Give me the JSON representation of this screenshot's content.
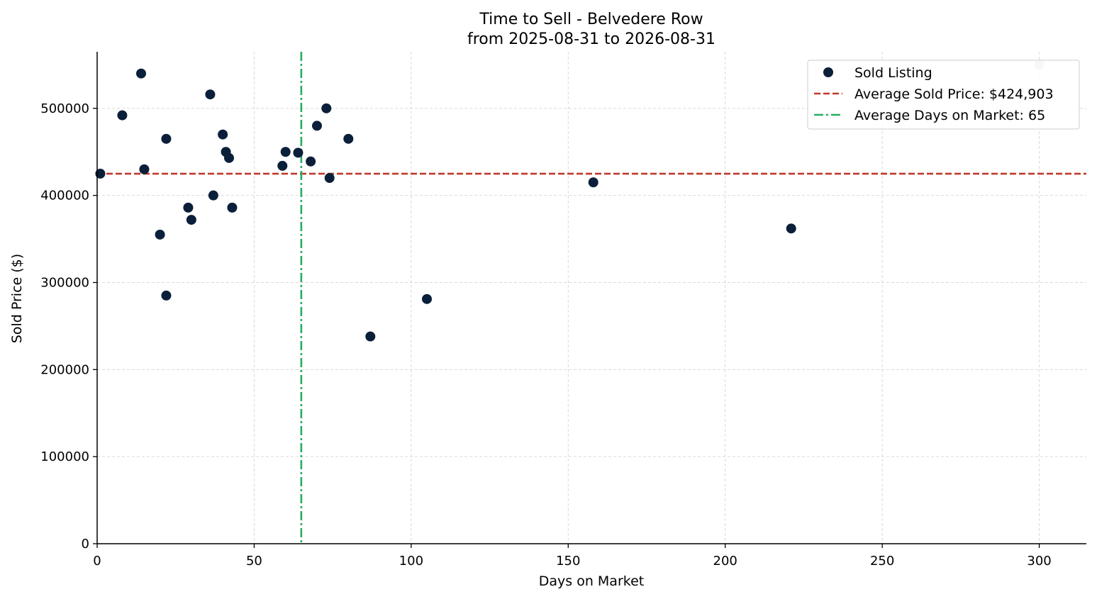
{
  "chart_data": {
    "type": "scatter",
    "title": "Time to Sell - Belvedere Row",
    "subtitle": "from 2025-08-31 to 2026-08-31",
    "xlabel": "Days on Market",
    "ylabel": "Sold Price ($)",
    "xlim": [
      0,
      315
    ],
    "ylim": [
      0,
      565000
    ],
    "xticks": [
      0,
      50,
      100,
      150,
      200,
      250,
      300
    ],
    "yticks": [
      0,
      100000,
      200000,
      300000,
      400000,
      500000
    ],
    "grid": true,
    "legend_position": "top-right",
    "colors": {
      "points": "#0b1f3a",
      "faded_point": "#c8ced6",
      "avg_price_line": "#c0392b",
      "avg_days_line": "#27ae60"
    },
    "series": [
      {
        "name": "Sold Listing",
        "points": [
          {
            "x": 1,
            "y": 425000
          },
          {
            "x": 8,
            "y": 492000
          },
          {
            "x": 14,
            "y": 540000
          },
          {
            "x": 15,
            "y": 430000
          },
          {
            "x": 20,
            "y": 355000
          },
          {
            "x": 22,
            "y": 465000
          },
          {
            "x": 22,
            "y": 285000
          },
          {
            "x": 29,
            "y": 386000
          },
          {
            "x": 30,
            "y": 372000
          },
          {
            "x": 36,
            "y": 516000
          },
          {
            "x": 37,
            "y": 400000
          },
          {
            "x": 40,
            "y": 470000
          },
          {
            "x": 41,
            "y": 450000
          },
          {
            "x": 42,
            "y": 443000
          },
          {
            "x": 43,
            "y": 386000
          },
          {
            "x": 59,
            "y": 434000
          },
          {
            "x": 60,
            "y": 450000
          },
          {
            "x": 64,
            "y": 449000
          },
          {
            "x": 68,
            "y": 439000
          },
          {
            "x": 70,
            "y": 480000
          },
          {
            "x": 73,
            "y": 500000
          },
          {
            "x": 74,
            "y": 420000
          },
          {
            "x": 80,
            "y": 465000
          },
          {
            "x": 87,
            "y": 238000
          },
          {
            "x": 105,
            "y": 281000
          },
          {
            "x": 158,
            "y": 415000
          },
          {
            "x": 221,
            "y": 362000
          },
          {
            "x": 300,
            "y": 550000,
            "faded": true
          }
        ]
      }
    ],
    "reference_lines": [
      {
        "name": "Average Sold Price: $424,903",
        "orientation": "horizontal",
        "value": 424903,
        "style": "dashed"
      },
      {
        "name": "Average Days on Market: 65",
        "orientation": "vertical",
        "value": 65,
        "style": "dashdot"
      }
    ],
    "legend": {
      "entries": [
        {
          "label": "Sold Listing",
          "symbol": "dot"
        },
        {
          "label": "Average Sold Price: $424,903",
          "symbol": "dashed"
        },
        {
          "label": "Average Days on Market: 65",
          "symbol": "dashdot"
        }
      ]
    }
  }
}
